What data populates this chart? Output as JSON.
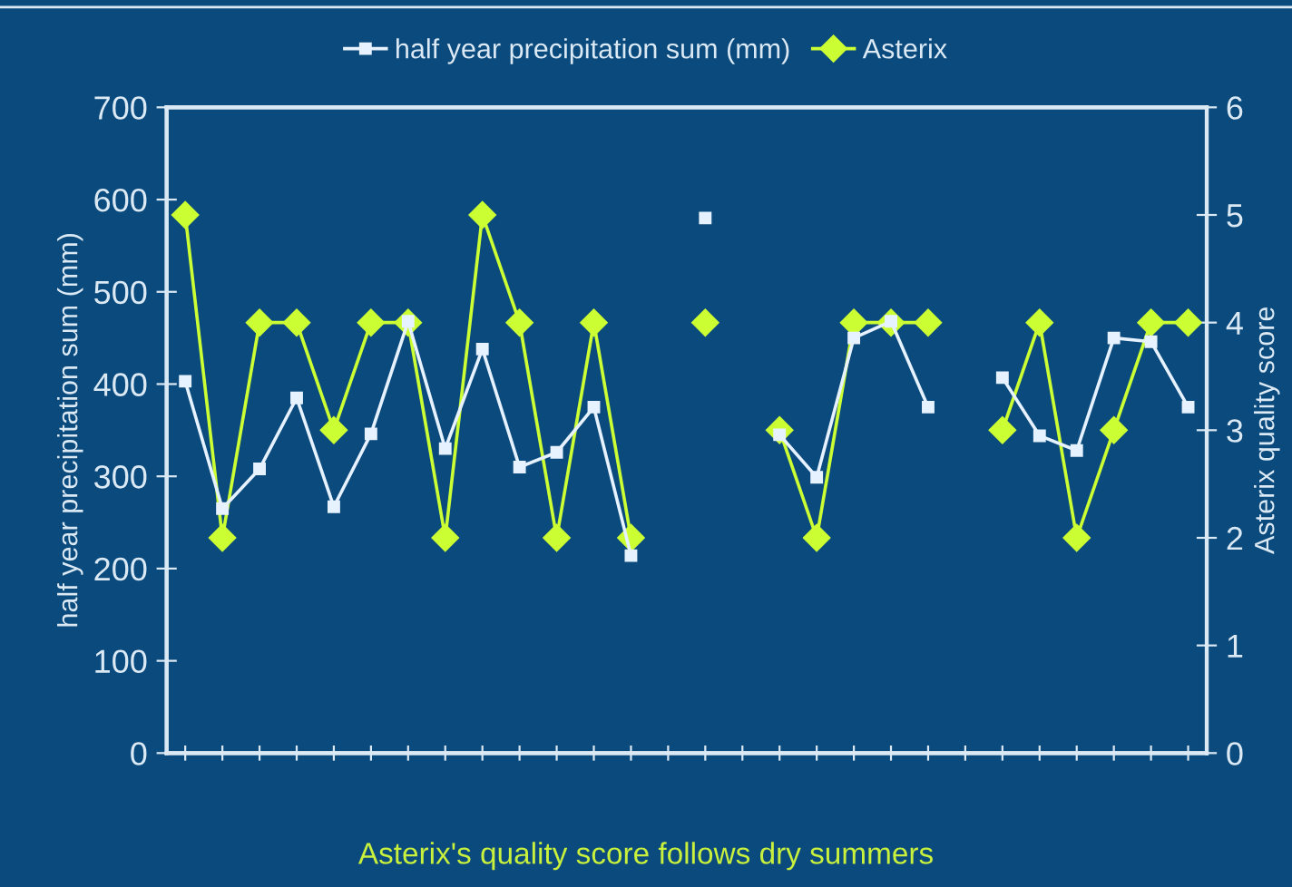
{
  "chart_data": {
    "type": "line",
    "categories": [
      null,
      null,
      null,
      null,
      null,
      null,
      null,
      null,
      null,
      null,
      null,
      null,
      null,
      null,
      null,
      null,
      null,
      null,
      null,
      null,
      null,
      null,
      null,
      null,
      null,
      null,
      null,
      null
    ],
    "series": [
      {
        "name": "half year precipitation sum (mm)",
        "color": "#e6f2ff",
        "marker": "square",
        "values": [
          403,
          265,
          308,
          385,
          267,
          346,
          468,
          330,
          438,
          310,
          326,
          375,
          214,
          null,
          580,
          null,
          345,
          299,
          450,
          468,
          375,
          null,
          407,
          344,
          328,
          450,
          446,
          375
        ]
      },
      {
        "name": "Asterix",
        "color": "#ccff33",
        "marker": "diamond",
        "axis": "y2",
        "values": [
          5,
          2,
          4,
          4,
          3,
          4,
          4,
          2,
          5,
          4,
          2,
          4,
          2,
          null,
          4,
          null,
          3,
          2,
          4,
          4,
          4,
          null,
          3,
          4,
          2,
          3,
          4,
          4
        ]
      }
    ],
    "ylabel": "half year precipitation sum (mm)",
    "y2label": "Asterix quality score",
    "ylim": [
      0,
      700
    ],
    "yticks": [
      0,
      100,
      200,
      300,
      400,
      500,
      600,
      700
    ],
    "y2lim": [
      0,
      6
    ],
    "y2ticks": [
      0,
      1,
      2,
      3,
      4,
      5,
      6
    ],
    "annotations": [
      "Asterix's quality score follows dry summers"
    ],
    "legend": "top",
    "grid": false,
    "line_style": "solid"
  }
}
